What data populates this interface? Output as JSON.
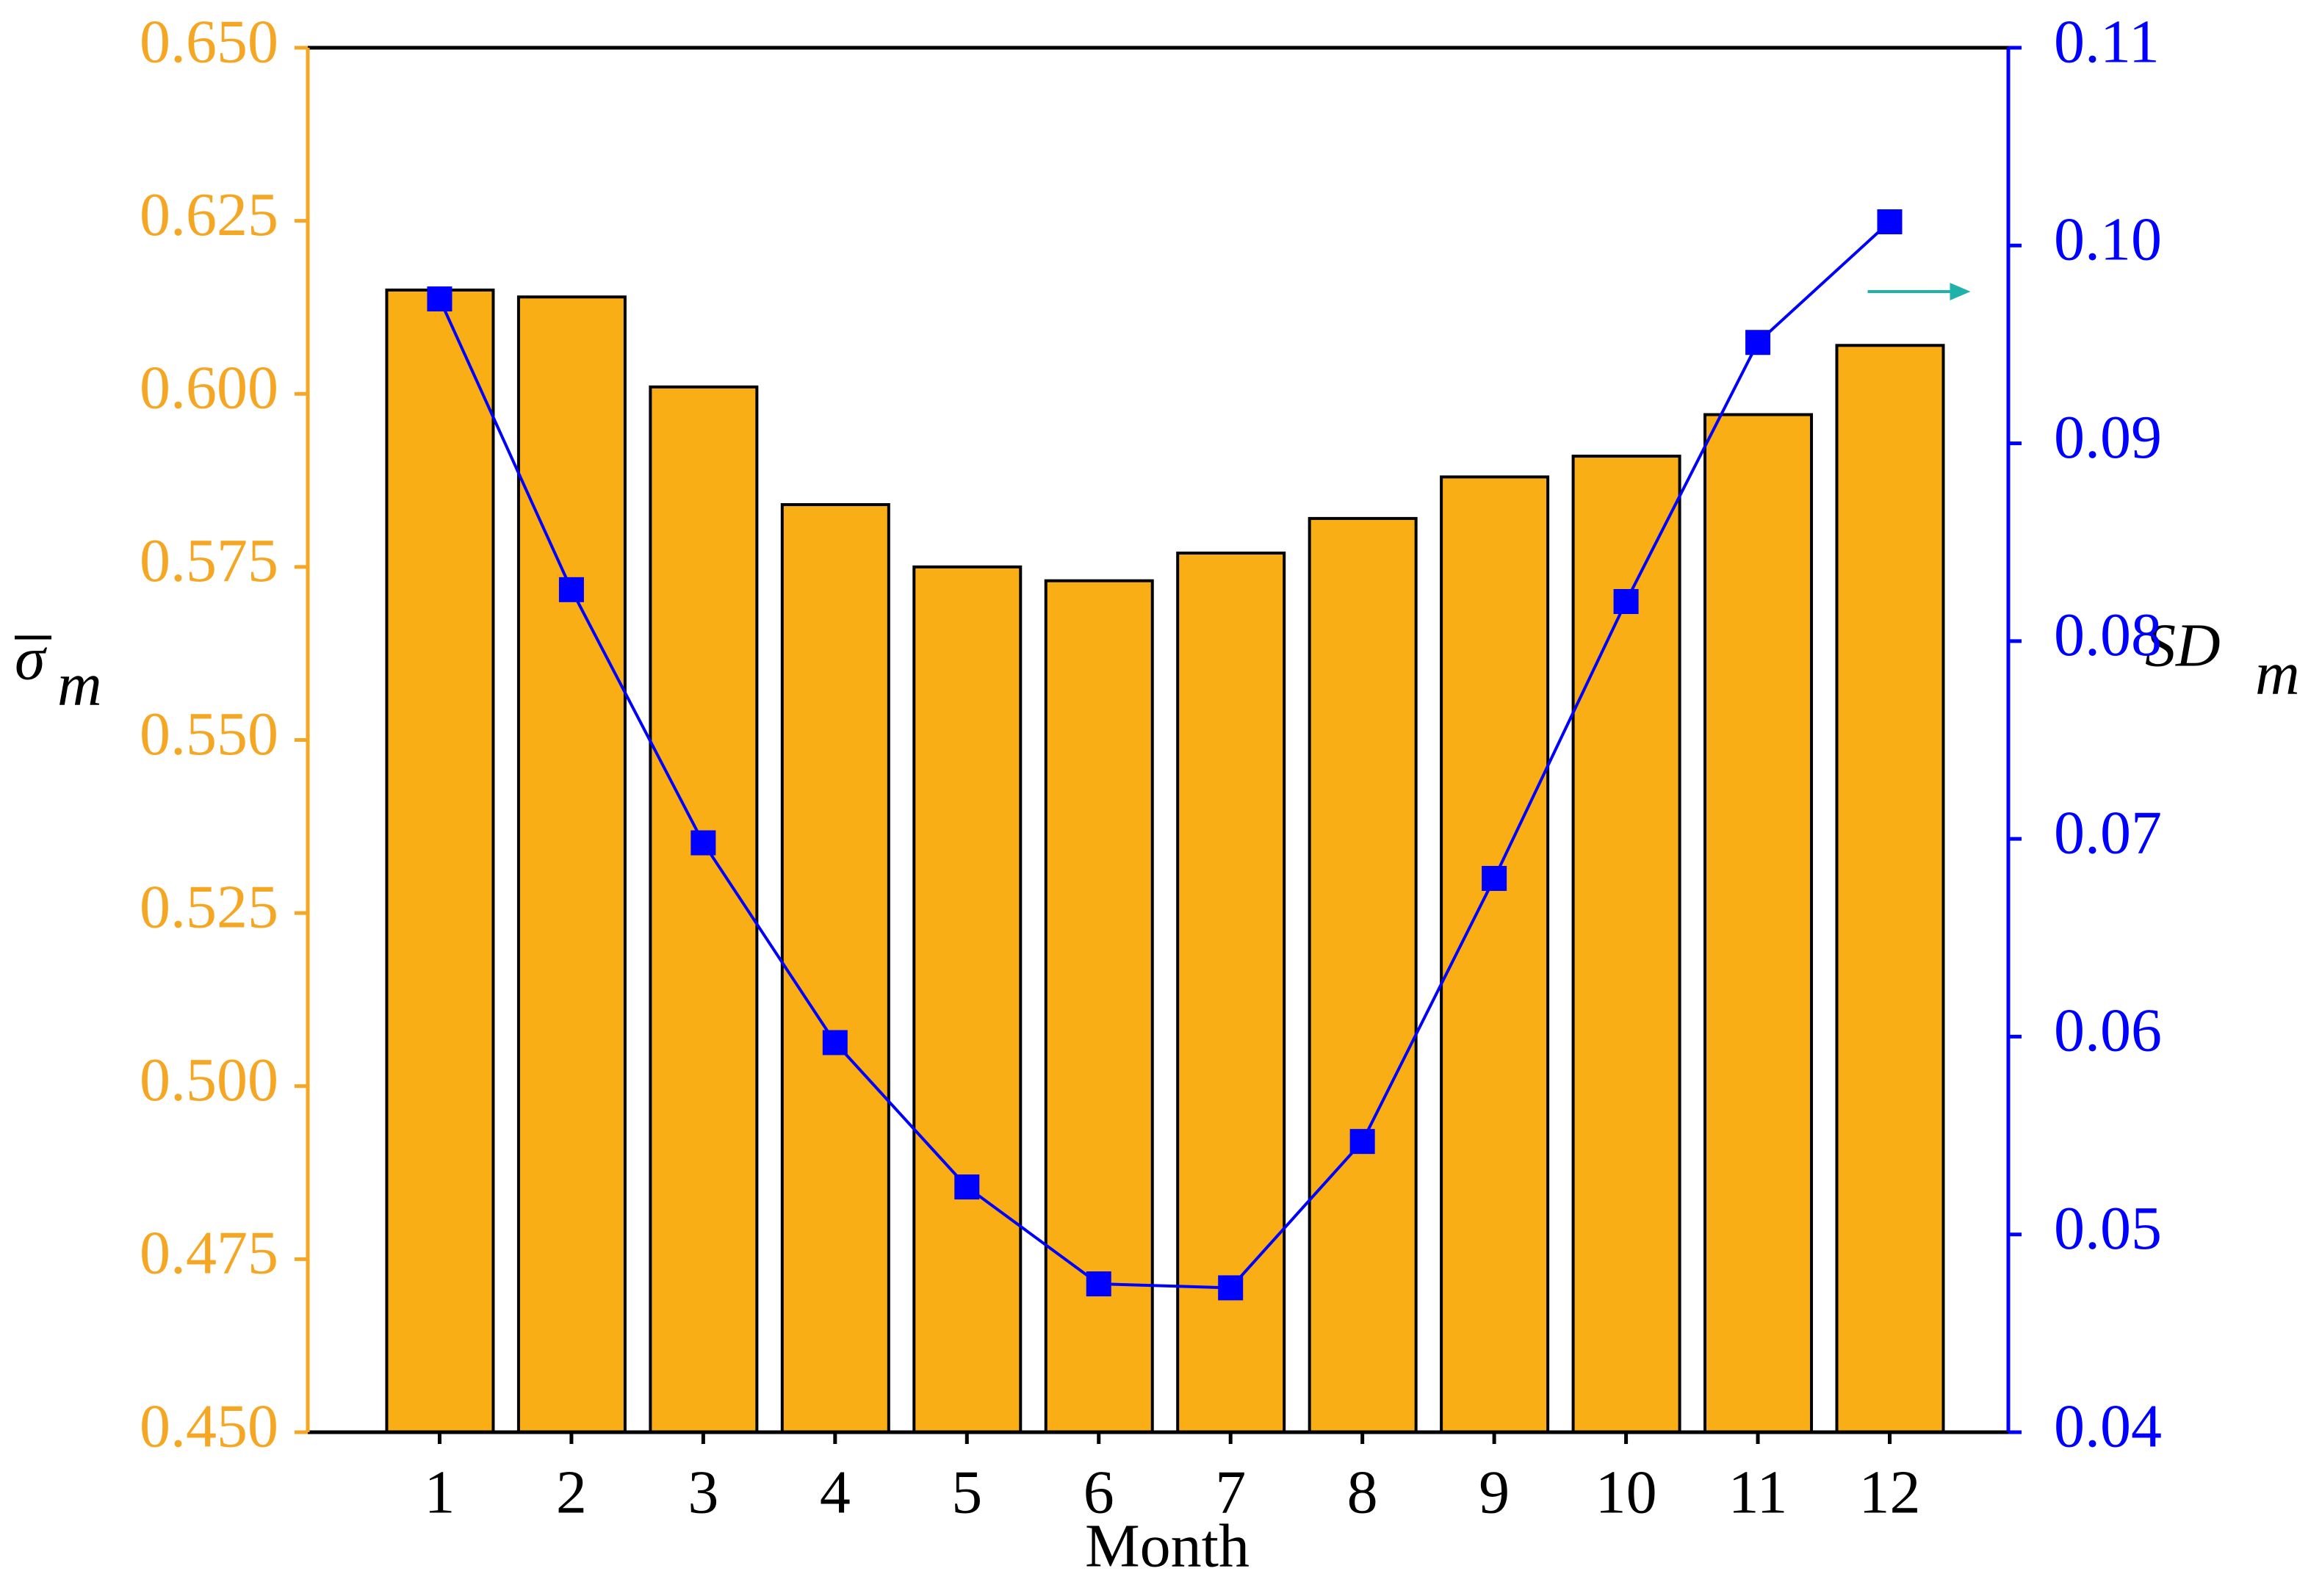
{
  "chart_data": {
    "type": "bar-line",
    "x_label": "Month",
    "ylabel_symbol": "σ",
    "ylabel_subscript": "m",
    "y2label_symbol": "SD",
    "y2label_subscript": "m",
    "categories": [
      "1",
      "2",
      "3",
      "4",
      "5",
      "6",
      "7",
      "8",
      "9",
      "10",
      "11",
      "12"
    ],
    "series": [
      {
        "type": "bar",
        "color": "#f8ae14",
        "values": [
          0.615,
          0.614,
          0.601,
          0.584,
          0.575,
          0.573,
          0.577,
          0.582,
          0.588,
          0.591,
          0.597,
          0.607
        ]
      },
      {
        "type": "line",
        "axis": "y2",
        "color": "#0000ff",
        "values": [
          0.0973,
          0.0826,
          0.0698,
          0.0597,
          0.0524,
          0.0475,
          0.0473,
          0.0547,
          0.068,
          0.082,
          0.0951,
          0.1012
        ]
      }
    ],
    "ylim": [
      0.45,
      0.65
    ],
    "yticks": [
      {
        "value": 0.45,
        "label": "0.450"
      },
      0.475,
      {
        "value": 0.5,
        "label": "0.500"
      },
      0.525,
      {
        "value": 0.55,
        "label": "0.550"
      },
      0.575,
      {
        "value": 0.6,
        "label": "0.600"
      },
      0.625,
      {
        "value": 0.65,
        "label": "0.650"
      }
    ],
    "y_color": "#f5a623",
    "y2lim": [
      0.04,
      0.11
    ],
    "y2ticks": [
      0.04,
      0.05,
      0.06,
      0.07,
      0.08,
      0.09,
      {
        "value": 0.1,
        "label": "0.10"
      },
      0.11
    ],
    "y2_color": "#0000ff"
  }
}
